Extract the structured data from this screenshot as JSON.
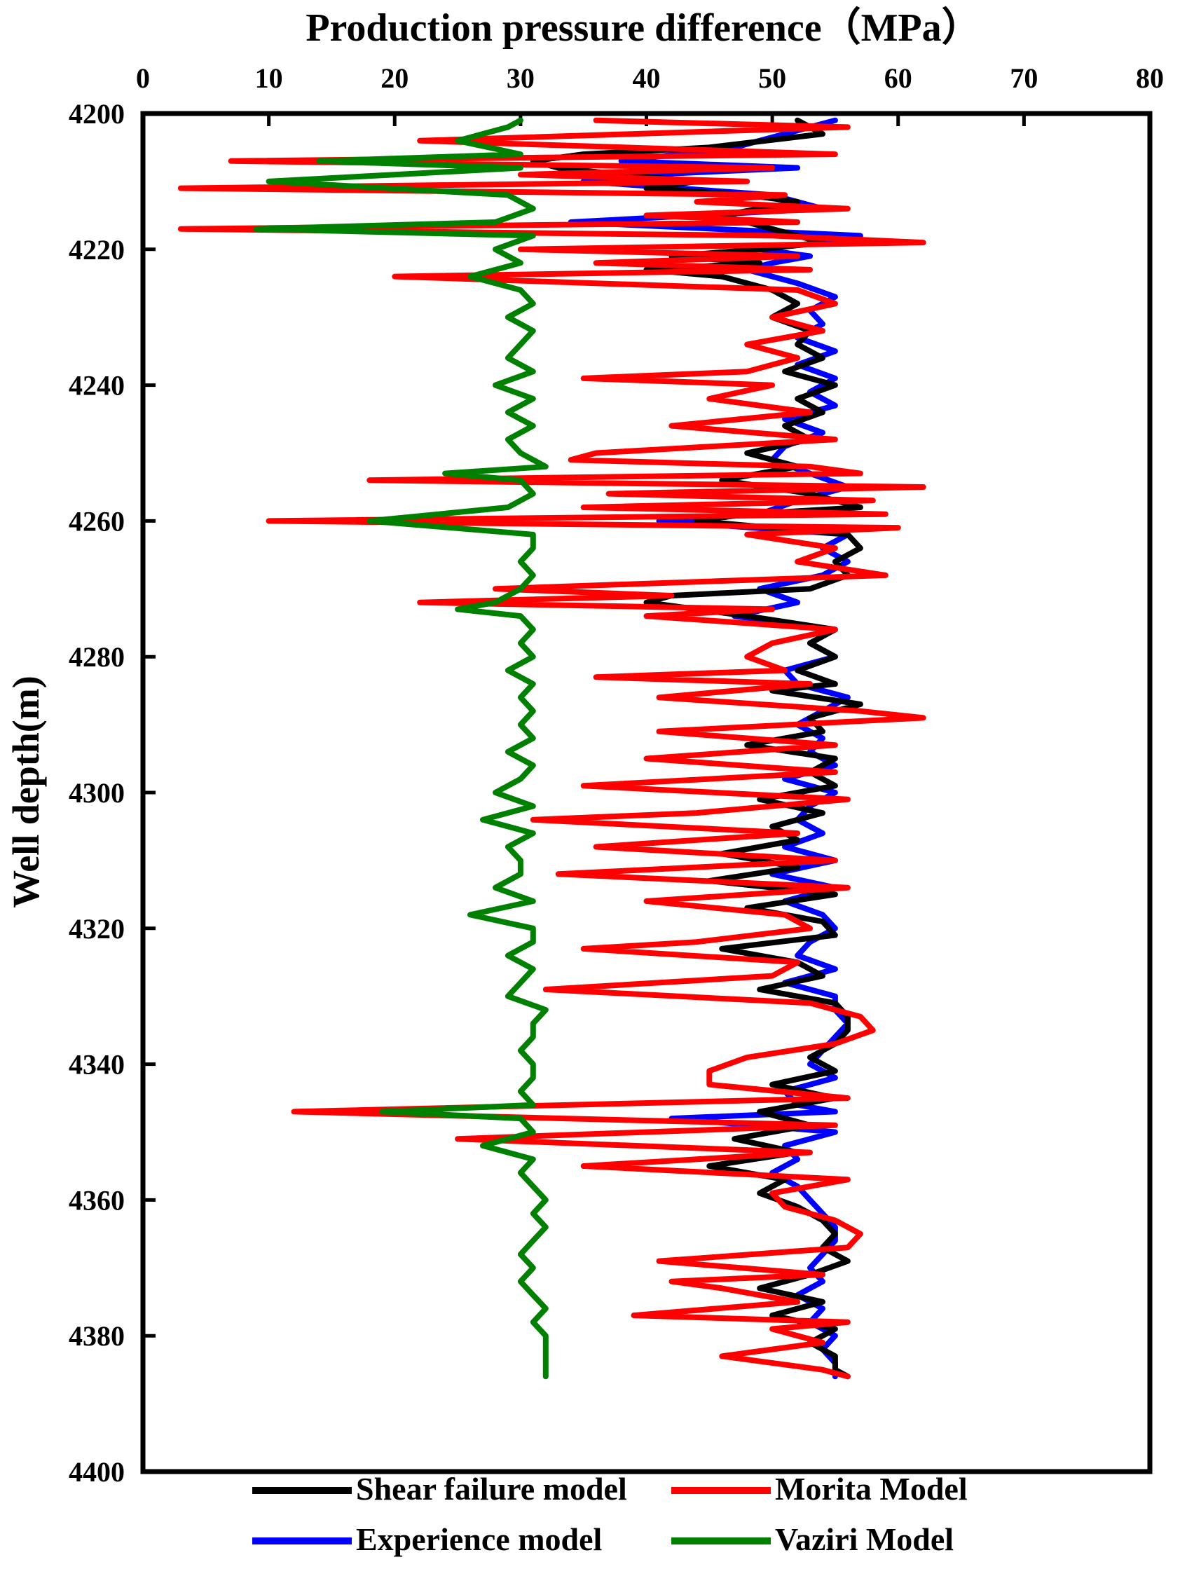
{
  "chart_data": {
    "type": "line",
    "title": "Production pressure difference（MPa）",
    "xlabel": "Production pressure difference（MPa）",
    "ylabel": "Well depth(m)",
    "xlim": [
      0,
      80
    ],
    "ylim": [
      4200,
      4400
    ],
    "y_inverted": true,
    "x_axis_position": "top",
    "x_ticks": [
      0,
      10,
      20,
      30,
      40,
      50,
      60,
      70,
      80
    ],
    "y_ticks": [
      4200,
      4220,
      4240,
      4260,
      4280,
      4300,
      4320,
      4340,
      4360,
      4380,
      4400
    ],
    "grid": false,
    "legend_position": "bottom",
    "series": [
      {
        "name": "Shear failure model",
        "color": "#000000",
        "depth": [
          4201,
          4203,
          4205,
          4206,
          4207,
          4208,
          4209,
          4210,
          4211,
          4212,
          4213,
          4215,
          4217,
          4219,
          4220,
          4221,
          4222,
          4223,
          4224,
          4226,
          4228,
          4230,
          4232,
          4234,
          4236,
          4238,
          4240,
          4242,
          4244,
          4246,
          4248,
          4250,
          4252,
          4254,
          4256,
          4257,
          4258,
          4259,
          4260,
          4262,
          4264,
          4266,
          4268,
          4270,
          4271,
          4272,
          4273,
          4274,
          4276,
          4278,
          4280,
          4282,
          4284,
          4285,
          4287,
          4289,
          4291,
          4293,
          4295,
          4297,
          4299,
          4301,
          4303,
          4305,
          4307,
          4309,
          4311,
          4313,
          4315,
          4317,
          4319,
          4321,
          4323,
          4325,
          4327,
          4329,
          4331,
          4333,
          4335,
          4337,
          4339,
          4341,
          4343,
          4345,
          4347,
          4349,
          4351,
          4353,
          4355,
          4357,
          4359,
          4361,
          4363,
          4365,
          4367,
          4369,
          4371,
          4373,
          4375,
          4377,
          4379,
          4381,
          4383,
          4385,
          4386
        ],
        "values": [
          52,
          54,
          45,
          35,
          31,
          33,
          38,
          44,
          40,
          48,
          52,
          46,
          50,
          54,
          49,
          42,
          49,
          40,
          46,
          50,
          52,
          50,
          53,
          52,
          54,
          51,
          55,
          52,
          54,
          51,
          53,
          48,
          52,
          46,
          53,
          55,
          57,
          48,
          44,
          56,
          57,
          55,
          56,
          53,
          42,
          40,
          44,
          48,
          55,
          53,
          55,
          52,
          55,
          50,
          57,
          53,
          54,
          48,
          55,
          53,
          55,
          49,
          54,
          50,
          52,
          46,
          52,
          45,
          55,
          48,
          54,
          55,
          46,
          52,
          54,
          49,
          55,
          56,
          56,
          55,
          53,
          55,
          50,
          55,
          49,
          53,
          47,
          52,
          45,
          51,
          49,
          52,
          54,
          55,
          54,
          56,
          53,
          49,
          54,
          50,
          55,
          53,
          55,
          55,
          56
        ]
      },
      {
        "name": "Morita Model",
        "color": "#ff0000",
        "depth": [
          4201,
          4202,
          4204,
          4206,
          4207,
          4208,
          4209,
          4210,
          4211,
          4212,
          4213,
          4214,
          4215,
          4216,
          4217,
          4218,
          4219,
          4220,
          4221,
          4222,
          4223,
          4224,
          4226,
          4228,
          4230,
          4232,
          4234,
          4236,
          4238,
          4239,
          4240,
          4242,
          4244,
          4246,
          4248,
          4250,
          4251,
          4252,
          4253,
          4254,
          4255,
          4256,
          4257,
          4258,
          4259,
          4260,
          4261,
          4262,
          4264,
          4266,
          4268,
          4270,
          4271,
          4272,
          4273,
          4274,
          4276,
          4278,
          4280,
          4282,
          4283,
          4284,
          4286,
          4288,
          4289,
          4291,
          4293,
          4295,
          4297,
          4299,
          4301,
          4303,
          4304,
          4306,
          4308,
          4310,
          4312,
          4314,
          4316,
          4318,
          4320,
          4322,
          4323,
          4325,
          4327,
          4329,
          4331,
          4333,
          4335,
          4337,
          4339,
          4341,
          4343,
          4345,
          4347,
          4349,
          4351,
          4353,
          4355,
          4357,
          4359,
          4361,
          4363,
          4365,
          4367,
          4369,
          4371,
          4372,
          4373,
          4375,
          4377,
          4378,
          4379,
          4381,
          4383,
          4385,
          4386
        ],
        "values": [
          36,
          56,
          22,
          55,
          7,
          50,
          30,
          48,
          3,
          51,
          44,
          56,
          40,
          52,
          3,
          50,
          62,
          30,
          52,
          36,
          53,
          20,
          52,
          55,
          50,
          54,
          48,
          52,
          48,
          35,
          50,
          45,
          53,
          42,
          55,
          36,
          34,
          53,
          57,
          18,
          62,
          37,
          58,
          35,
          59,
          10,
          60,
          48,
          55,
          52,
          59,
          28,
          42,
          22,
          50,
          40,
          55,
          50,
          48,
          51,
          36,
          53,
          41,
          57,
          62,
          41,
          55,
          40,
          55,
          35,
          56,
          44,
          31,
          52,
          36,
          55,
          33,
          56,
          40,
          51,
          53,
          44,
          35,
          52,
          50,
          32,
          53,
          57,
          58,
          55,
          48,
          45,
          45,
          56,
          12,
          55,
          25,
          53,
          35,
          56,
          50,
          51,
          55,
          57,
          56,
          41,
          54,
          42,
          46,
          52,
          39,
          56,
          50,
          54,
          46,
          54,
          56
        ]
      },
      {
        "name": "Experience model",
        "color": "#0000ff",
        "depth": [
          4201,
          4203,
          4205,
          4207,
          4208,
          4209,
          4210,
          4212,
          4214,
          4216,
          4218,
          4219,
          4220,
          4221,
          4222,
          4223,
          4225,
          4227,
          4229,
          4231,
          4233,
          4235,
          4237,
          4239,
          4241,
          4243,
          4245,
          4247,
          4249,
          4251,
          4253,
          4255,
          4257,
          4259,
          4260,
          4262,
          4264,
          4266,
          4268,
          4270,
          4272,
          4274,
          4276,
          4278,
          4280,
          4282,
          4284,
          4286,
          4288,
          4290,
          4292,
          4294,
          4296,
          4298,
          4300,
          4302,
          4304,
          4306,
          4308,
          4310,
          4312,
          4314,
          4316,
          4318,
          4320,
          4322,
          4324,
          4326,
          4328,
          4330,
          4332,
          4334,
          4336,
          4338,
          4340,
          4342,
          4344,
          4346,
          4347,
          4348,
          4350,
          4352,
          4354,
          4356,
          4358,
          4360,
          4362,
          4364,
          4366,
          4368,
          4370,
          4372,
          4374,
          4376,
          4378,
          4380,
          4382,
          4384,
          4386
        ],
        "values": [
          55,
          51,
          47,
          38,
          52,
          40,
          35,
          50,
          54,
          34,
          57,
          54,
          49,
          53,
          50,
          48,
          52,
          55,
          53,
          54,
          52,
          55,
          52,
          55,
          53,
          55,
          51,
          54,
          51,
          50,
          53,
          56,
          52,
          49,
          41,
          56,
          54,
          56,
          54,
          49,
          52,
          47,
          55,
          53,
          55,
          51,
          52,
          56,
          54,
          52,
          54,
          53,
          55,
          51,
          55,
          53,
          52,
          54,
          51,
          55,
          50,
          55,
          51,
          54,
          55,
          53,
          52,
          55,
          51,
          55,
          55,
          56,
          55,
          54,
          53,
          55,
          51,
          52,
          55,
          42,
          55,
          51,
          52,
          50,
          52,
          53,
          54,
          55,
          55,
          54,
          53,
          54,
          52,
          54,
          53,
          55,
          54,
          55,
          55
        ]
      },
      {
        "name": "Vaziri Model",
        "color": "#008000",
        "depth": [
          4201,
          4202,
          4204,
          4206,
          4207,
          4208,
          4209,
          4210,
          4212,
          4214,
          4216,
          4217,
          4218,
          4220,
          4222,
          4224,
          4226,
          4228,
          4230,
          4232,
          4234,
          4236,
          4238,
          4240,
          4242,
          4244,
          4246,
          4248,
          4250,
          4252,
          4253,
          4254,
          4256,
          4258,
          4260,
          4262,
          4264,
          4266,
          4268,
          4270,
          4272,
          4273,
          4274,
          4276,
          4278,
          4280,
          4282,
          4284,
          4286,
          4288,
          4290,
          4292,
          4294,
          4296,
          4298,
          4300,
          4302,
          4304,
          4306,
          4308,
          4310,
          4312,
          4314,
          4316,
          4318,
          4320,
          4322,
          4324,
          4326,
          4328,
          4330,
          4332,
          4334,
          4336,
          4338,
          4340,
          4342,
          4344,
          4346,
          4347,
          4348,
          4350,
          4352,
          4354,
          4356,
          4358,
          4360,
          4362,
          4364,
          4366,
          4368,
          4370,
          4372,
          4374,
          4376,
          4378,
          4380,
          4382,
          4384,
          4386
        ],
        "values": [
          30,
          29,
          25,
          30,
          14,
          30,
          20,
          10,
          29,
          31,
          28,
          9,
          31,
          28,
          30,
          26,
          30,
          31,
          29,
          31,
          30,
          29,
          31,
          28,
          31,
          29,
          31,
          29,
          30,
          32,
          24,
          30,
          31,
          29,
          18,
          31,
          31,
          30,
          31,
          30,
          28,
          25,
          30,
          31,
          30,
          31,
          29,
          31,
          30,
          31,
          30,
          31,
          29,
          31,
          30,
          28,
          31,
          27,
          31,
          29,
          30,
          30,
          28,
          31,
          26,
          31,
          31,
          29,
          31,
          30,
          29,
          32,
          31,
          31,
          30,
          31,
          31,
          30,
          31,
          19,
          30,
          31,
          27,
          31,
          30,
          31,
          32,
          31,
          32,
          31,
          30,
          31,
          30,
          31,
          32,
          31,
          32,
          32,
          32,
          32
        ]
      }
    ]
  }
}
